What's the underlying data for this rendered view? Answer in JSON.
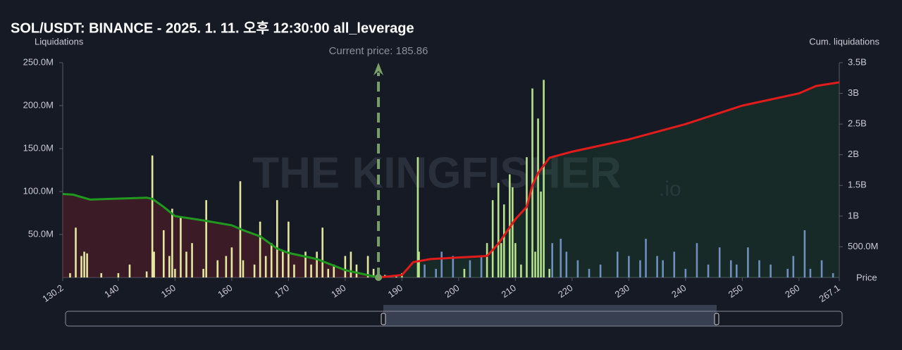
{
  "chart_data": {
    "type": "bar",
    "title": "SOL/USDT: BINANCE - 2025. 1. 11. 오후 12:30:00 all_leverage",
    "y_label": "Liquidations",
    "y2_label": "Cum. liquidations",
    "x_label": "Price",
    "watermark": "THE KINGFISHER",
    "watermark_suffix": ".io",
    "current_price": {
      "text": "Current price: 185.86",
      "value": 185.86,
      "color": "#7aa06a"
    },
    "xlim": [
      130.2,
      267.1
    ],
    "xticks": [
      130.2,
      140,
      150,
      160,
      170,
      180,
      190,
      200,
      210,
      220,
      230,
      240,
      250,
      260,
      267.1
    ],
    "ylim": [
      0,
      250
    ],
    "yticks": [
      {
        "value": 50,
        "label": "50.0M"
      },
      {
        "value": 100,
        "label": "100.0M"
      },
      {
        "value": 150,
        "label": "150.0M"
      },
      {
        "value": 200,
        "label": "200.0M"
      },
      {
        "value": 250,
        "label": "250.0M"
      }
    ],
    "y2lim": [
      0,
      3.5
    ],
    "y2ticks": [
      {
        "value": 0.5,
        "label": "500.0M"
      },
      {
        "value": 1,
        "label": "1B"
      },
      {
        "value": 1.5,
        "label": "1.5B"
      },
      {
        "value": 2,
        "label": "2B"
      },
      {
        "value": 2.5,
        "label": "2.5B"
      },
      {
        "value": 3,
        "label": "3B"
      },
      {
        "value": 3.5,
        "label": "3.5B"
      }
    ],
    "bars": [
      {
        "color": "#e4e7a0",
        "x": [
          131.5,
          132.5,
          133.5,
          134,
          134.5,
          137,
          140,
          142,
          145,
          146,
          146.3,
          148,
          149,
          149.5,
          150,
          151,
          152,
          153,
          155,
          155.5,
          157.5,
          159,
          160,
          161.5,
          162,
          164,
          165,
          166,
          167,
          168,
          169,
          170,
          171,
          173,
          174,
          175,
          176,
          177,
          178,
          180,
          181,
          182,
          184,
          185
        ],
        "values": [
          5,
          58,
          25,
          30,
          28,
          5,
          5,
          15,
          7,
          142,
          30,
          55,
          25,
          80,
          10,
          70,
          30,
          40,
          10,
          90,
          20,
          25,
          35,
          112,
          20,
          15,
          65,
          25,
          40,
          90,
          30,
          65,
          15,
          30,
          15,
          30,
          58,
          10,
          15,
          25,
          30,
          15,
          25,
          10
        ]
      },
      {
        "color": "#b6e28c",
        "x": [
          187,
          189,
          190,
          192.8,
          193,
          201,
          205,
          206,
          207,
          207.5,
          208,
          209,
          209.5,
          210,
          211,
          212,
          213,
          213.5,
          214,
          214.5,
          215,
          216
        ],
        "values": [
          3,
          3,
          5,
          140,
          30,
          10,
          40,
          90,
          110,
          40,
          85,
          120,
          105,
          40,
          15,
          140,
          220,
          30,
          185,
          100,
          230,
          10
        ]
      },
      {
        "color": "#6f8fbf",
        "x": [
          194,
          196,
          197,
          199,
          202,
          204,
          216.5,
          218,
          219,
          221,
          223,
          225,
          228,
          230,
          232,
          233,
          235,
          236,
          238,
          240,
          242,
          244,
          246,
          248,
          249,
          251,
          253,
          255,
          258,
          259,
          261,
          262,
          264,
          266
        ],
        "values": [
          15,
          10,
          30,
          25,
          20,
          25,
          40,
          45,
          30,
          20,
          10,
          15,
          30,
          25,
          20,
          45,
          25,
          20,
          30,
          10,
          40,
          15,
          35,
          20,
          15,
          35,
          20,
          15,
          10,
          25,
          55,
          10,
          20,
          5
        ]
      }
    ],
    "lines": [
      {
        "color": "#1f9a1f",
        "fill": "rgba(120,30,40,0.38)",
        "axis": "y2",
        "x": [
          130.2,
          132,
          135,
          145,
          146,
          148,
          150,
          155,
          160,
          162,
          165,
          168,
          170,
          175,
          180,
          185.86
        ],
        "values": [
          1.36,
          1.35,
          1.27,
          1.3,
          1.28,
          1.15,
          1.0,
          0.93,
          0.85,
          0.77,
          0.67,
          0.47,
          0.4,
          0.3,
          0.12,
          0
        ]
      },
      {
        "color": "#e21b1b",
        "fill": "rgba(30,90,50,0.25)",
        "axis": "y2",
        "x": [
          185.86,
          190,
          192,
          195,
          205,
          207,
          210,
          212,
          213,
          214,
          216,
          220,
          230,
          240,
          250,
          260,
          263,
          267.1
        ],
        "values": [
          0,
          0.04,
          0.25,
          0.3,
          0.35,
          0.55,
          0.95,
          1.15,
          1.5,
          1.7,
          1.95,
          2.05,
          2.25,
          2.5,
          2.8,
          3.0,
          3.12,
          3.18
        ]
      }
    ]
  }
}
